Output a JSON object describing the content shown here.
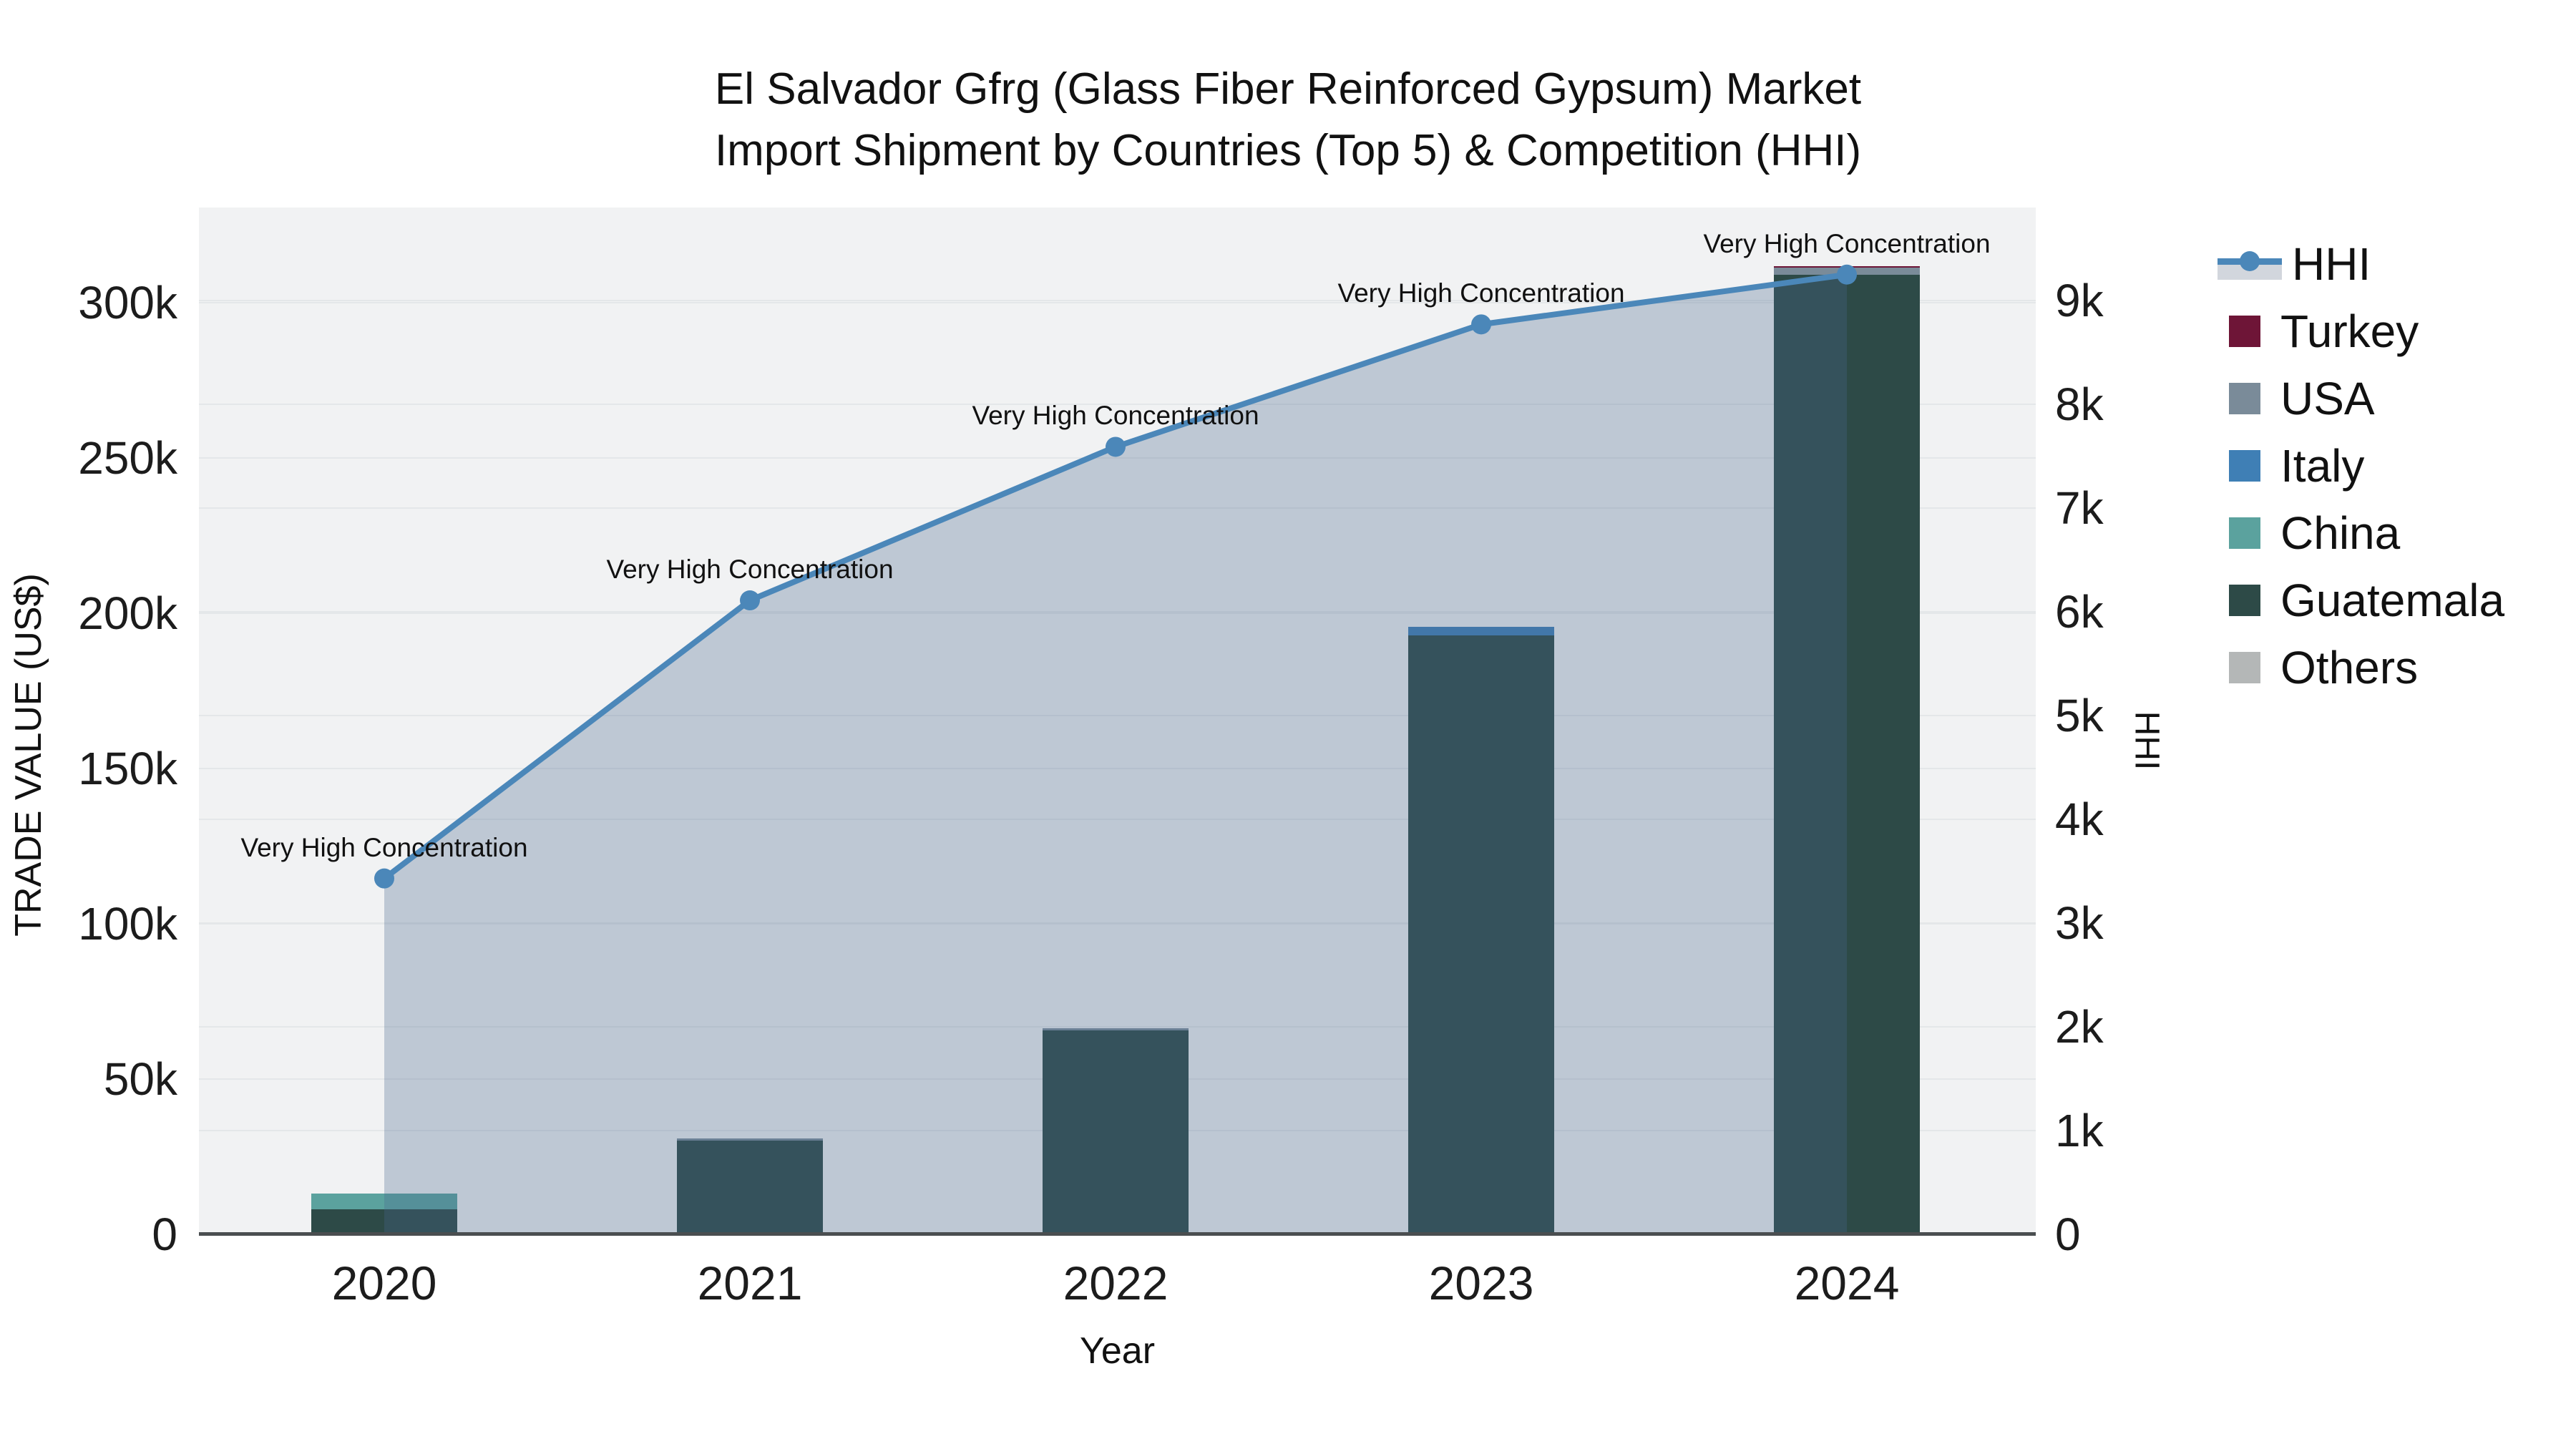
{
  "chart_data": {
    "type": "combo-stacked-bar-line-area",
    "title_line1": "El Salvador Gfrg (Glass Fiber Reinforced Gypsum) Market",
    "title_line2": "Import Shipment by Countries (Top 5) & Competition (HHI)",
    "xlabel": "Year",
    "ylabel_left": "TRADE VALUE (US$)",
    "ylabel_right": "HHI",
    "categories": [
      "2020",
      "2021",
      "2022",
      "2023",
      "2024"
    ],
    "bar_series": [
      {
        "name": "Others",
        "values": [
          0,
          0,
          0,
          0,
          0
        ]
      },
      {
        "name": "Guatemala",
        "values": [
          8100,
          30100,
          65600,
          192900,
          309000
        ]
      },
      {
        "name": "China",
        "values": [
          5000,
          0,
          0,
          0,
          0
        ]
      },
      {
        "name": "Italy",
        "values": [
          0,
          0,
          0,
          2800,
          0
        ]
      },
      {
        "name": "USA",
        "values": [
          0,
          800,
          800,
          0,
          2200
        ]
      },
      {
        "name": "Turkey",
        "values": [
          0,
          0,
          0,
          0,
          600
        ]
      }
    ],
    "line_series": {
      "name": "HHI",
      "values": [
        3430,
        6110,
        7590,
        8770,
        9250
      ],
      "annotations": [
        "Very High Concentration",
        "Very High Concentration",
        "Very High Concentration",
        "Very High Concentration",
        "Very High Concentration"
      ]
    },
    "left_axis": {
      "ticks": [
        "0",
        "50k",
        "100k",
        "150k",
        "200k",
        "250k",
        "300k"
      ],
      "tick_values": [
        0,
        50000,
        100000,
        150000,
        200000,
        250000,
        300000
      ],
      "range": [
        0,
        330000
      ]
    },
    "right_axis": {
      "ticks": [
        "0",
        "1k",
        "2k",
        "3k",
        "4k",
        "5k",
        "6k",
        "7k",
        "8k",
        "9k"
      ],
      "tick_values": [
        0,
        1000,
        2000,
        3000,
        4000,
        5000,
        6000,
        7000,
        8000,
        9000
      ],
      "range": [
        0,
        9900
      ]
    },
    "legend": {
      "items": [
        {
          "label": "HHI",
          "kind": "line"
        },
        {
          "label": "Turkey",
          "kind": "swatch"
        },
        {
          "label": "USA",
          "kind": "swatch"
        },
        {
          "label": "Italy",
          "kind": "swatch"
        },
        {
          "label": "China",
          "kind": "swatch"
        },
        {
          "label": "Guatemala",
          "kind": "swatch"
        },
        {
          "label": "Others",
          "kind": "swatch"
        }
      ]
    },
    "colors": {
      "Turkey": "#6e1537",
      "USA": "#7a8b99",
      "Italy": "#3f7fb5",
      "China": "#5ba29e",
      "Guatemala": "#2d4a47",
      "Others": "#b4b7b7",
      "hhi_line": "#4b87b9",
      "hhi_fill": "rgba(74,102,142,0.30)",
      "hhi_band": "#d2d6dd",
      "plot_bg": "#f1f2f3",
      "grid": "#e4e7e9",
      "axis_line": "#4a4e50"
    }
  }
}
